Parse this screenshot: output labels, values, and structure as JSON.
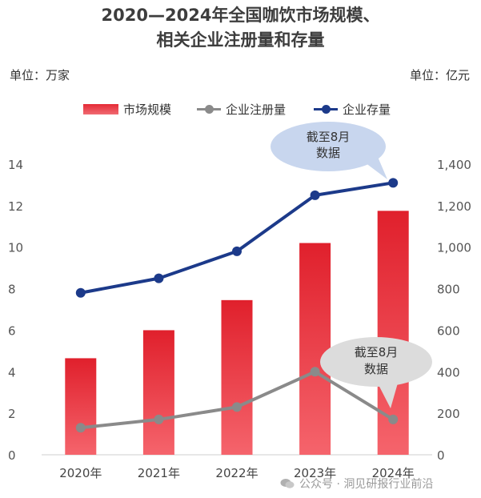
{
  "title_line1": "2020—2024年全国咖饮市场规模、",
  "title_line2": "相关企业注册量和存量",
  "unit_left": "单位：万家",
  "unit_right": "单位：亿元",
  "legend": {
    "market": "市场规模",
    "registrations": "企业注册量",
    "stock": "企业存量"
  },
  "callouts": {
    "stock_note": [
      "截至8月",
      "数据"
    ],
    "reg_note": [
      "截至8月",
      "数据"
    ]
  },
  "watermark_text": "公众号 · 洞见研报行业前沿",
  "colors": {
    "bar_top": "#e0202c",
    "bar_bottom": "#f5646c",
    "registrations": "#8a8a8a",
    "stock": "#1c3a8a",
    "callout": "#c8d6ee",
    "callout2": "#dcdcdc"
  },
  "chart_data": {
    "type": "bar+line",
    "categories": [
      "2020年",
      "2021年",
      "2022年",
      "2023年",
      "2024年"
    ],
    "left_axis": {
      "label": "万家",
      "ylim": [
        0,
        14
      ],
      "ticks": [
        0,
        2,
        4,
        6,
        8,
        10,
        12,
        14
      ]
    },
    "right_axis": {
      "label": "亿元",
      "ylim": [
        0,
        1400
      ],
      "ticks": [
        "0",
        "200",
        "400",
        "600",
        "800",
        "1,000",
        "1,200",
        "1,400"
      ]
    },
    "series": [
      {
        "name": "市场规模",
        "type": "bar",
        "axis": "right",
        "values": [
          465,
          600,
          745,
          1020,
          1175
        ]
      },
      {
        "name": "企业注册量",
        "type": "line",
        "axis": "left",
        "values": [
          1.3,
          1.7,
          2.3,
          4.0,
          1.7
        ]
      },
      {
        "name": "企业存量",
        "type": "line",
        "axis": "left",
        "values": [
          7.8,
          8.5,
          9.8,
          12.5,
          13.1
        ]
      }
    ]
  }
}
